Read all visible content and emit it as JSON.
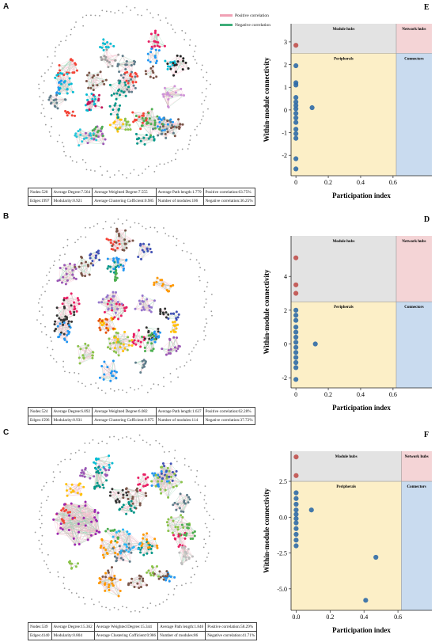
{
  "legend": {
    "positive": "Positive correlation",
    "negative": "Negative correlation",
    "positive_color": "#f0a0b4",
    "negative_color": "#3fae7a"
  },
  "panels": {
    "A": {
      "letter": "A",
      "stats": [
        [
          "Nodes:528",
          "Average Degree:7.564",
          "Average Weighted Degree:7.555",
          "Average Path length:1.779",
          "Positive correlation:63.75%"
        ],
        [
          "Edges:1997",
          "Modularity:0.921",
          "Average Clustering Cofficient:0.985",
          "Number of modules:106",
          "Negative correlation:36.25%"
        ]
      ]
    },
    "B": {
      "letter": "B",
      "stats": [
        [
          "Nodes:524",
          "Average Degree:6.092",
          "Average Weighted Degree:6.082",
          "Average Path length:1.637",
          "Positive correlation:62.28%"
        ],
        [
          "Edges:1596",
          "Modularity:0.931",
          "Average Clustering Cofficient:0.975",
          "Number of modules:114",
          "Negative correlation:37.72%"
        ]
      ]
    },
    "C": {
      "letter": "C",
      "stats": [
        [
          "Nodes:539",
          "Average Degree:15.362",
          "Average Weighted Degree:15.344",
          "Average Path length:1.846",
          "Positive correlation:58.29%"
        ],
        [
          "Edges:4140",
          "Modularity:0.804",
          "Average Clustering Cofficient:0.986",
          "Number of modules:86",
          "Negative correlation:41.71%"
        ]
      ]
    }
  },
  "chart_data": [
    {
      "panel": "E",
      "type": "scatter",
      "xlabel": "Participation index",
      "ylabel": "Within-module connectivity",
      "xlim": [
        -0.03,
        0.84
      ],
      "ylim": [
        -2.9,
        3.8
      ],
      "xticks": [
        0,
        0.2,
        0.4,
        0.6
      ],
      "xtick_labels": [
        "0",
        "0.2",
        "0.4",
        "0.6"
      ],
      "yticks": [
        -2,
        -1,
        0,
        1,
        2,
        3
      ],
      "ytick_labels": [
        "-2",
        "-1",
        "0",
        "1",
        "2",
        "3"
      ],
      "x_threshold": 0.62,
      "y_threshold": 2.5,
      "regions": [
        "Module hubs",
        "Network hubs",
        "Peripherals",
        "Connectors"
      ],
      "points": [
        {
          "x": 0,
          "y": 2.85,
          "hub": true
        },
        {
          "x": 0,
          "y": 1.95
        },
        {
          "x": 0,
          "y": 1.2
        },
        {
          "x": 0,
          "y": 1.1
        },
        {
          "x": 0,
          "y": 0.55
        },
        {
          "x": 0,
          "y": 0.35
        },
        {
          "x": 0,
          "y": 0.2
        },
        {
          "x": 0,
          "y": 0.05
        },
        {
          "x": 0,
          "y": -0.15
        },
        {
          "x": 0,
          "y": -0.35
        },
        {
          "x": 0,
          "y": -0.55
        },
        {
          "x": 0,
          "y": -0.85
        },
        {
          "x": 0,
          "y": -1.05
        },
        {
          "x": 0,
          "y": -1.25
        },
        {
          "x": 0,
          "y": -2.15
        },
        {
          "x": 0,
          "y": -2.6
        },
        {
          "x": 0.1,
          "y": 0.1
        }
      ]
    },
    {
      "panel": "D",
      "type": "scatter",
      "xlabel": "Participation index",
      "ylabel": "Within-module connectivity",
      "xlim": [
        -0.03,
        0.84
      ],
      "ylim": [
        -2.6,
        6.4
      ],
      "xticks": [
        0,
        0.2,
        0.4,
        0.6
      ],
      "xtick_labels": [
        "0",
        "0.2",
        "0.4",
        "0.6"
      ],
      "yticks": [
        -2,
        0,
        2,
        4
      ],
      "ytick_labels": [
        "-2",
        "0",
        "2",
        "4"
      ],
      "x_threshold": 0.62,
      "y_threshold": 2.5,
      "regions": [
        "Module hubs",
        "Network hubs",
        "Peripherals",
        "Connectors"
      ],
      "points": [
        {
          "x": 0,
          "y": 5.1,
          "hub": true
        },
        {
          "x": 0,
          "y": 3.5,
          "hub": true
        },
        {
          "x": 0,
          "y": 3.0,
          "hub": true
        },
        {
          "x": 0,
          "y": 2.0
        },
        {
          "x": 0,
          "y": 1.7
        },
        {
          "x": 0,
          "y": 1.4
        },
        {
          "x": 0,
          "y": 1.0
        },
        {
          "x": 0,
          "y": 0.7
        },
        {
          "x": 0,
          "y": 0.4
        },
        {
          "x": 0,
          "y": 0.1
        },
        {
          "x": 0,
          "y": -0.2
        },
        {
          "x": 0,
          "y": -0.5
        },
        {
          "x": 0,
          "y": -0.8
        },
        {
          "x": 0,
          "y": -1.1
        },
        {
          "x": 0,
          "y": -1.4
        },
        {
          "x": 0,
          "y": -2.1
        },
        {
          "x": 0.12,
          "y": 0.0
        }
      ]
    },
    {
      "panel": "F",
      "type": "scatter",
      "xlabel": "Participation index",
      "ylabel": "Within-module connectivity",
      "xlim": [
        -0.03,
        0.8
      ],
      "ylim": [
        -6.5,
        4.6
      ],
      "xticks": [
        0,
        0.2,
        0.4,
        0.6
      ],
      "xtick_labels": [
        "0.0",
        "0.2",
        "0.4",
        "0.6"
      ],
      "yticks": [
        -5,
        -2.5,
        0,
        2.5
      ],
      "ytick_labels": [
        "-5.0",
        "-2.5",
        "0.0",
        "2.5"
      ],
      "x_threshold": 0.62,
      "y_threshold": 2.5,
      "regions": [
        "Module hubs",
        "Network hubs",
        "Peripherals",
        "Connectors"
      ],
      "points": [
        {
          "x": 0,
          "y": 4.2,
          "hub": true
        },
        {
          "x": 0,
          "y": 2.9,
          "hub": true
        },
        {
          "x": 0,
          "y": 1.7
        },
        {
          "x": 0,
          "y": 1.3
        },
        {
          "x": 0,
          "y": 0.9
        },
        {
          "x": 0,
          "y": 0.5
        },
        {
          "x": 0,
          "y": 0.2
        },
        {
          "x": 0,
          "y": -0.1
        },
        {
          "x": 0,
          "y": -0.4
        },
        {
          "x": 0,
          "y": -0.8
        },
        {
          "x": 0,
          "y": -1.2
        },
        {
          "x": 0,
          "y": -1.6
        },
        {
          "x": 0,
          "y": -2.0
        },
        {
          "x": 0.09,
          "y": 0.5
        },
        {
          "x": 0.47,
          "y": -2.8
        },
        {
          "x": 0.41,
          "y": -5.8
        }
      ]
    }
  ]
}
